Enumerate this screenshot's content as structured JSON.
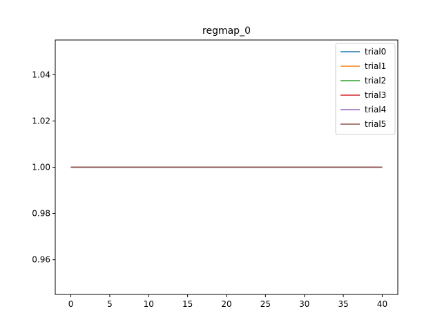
{
  "chart_data": {
    "type": "line",
    "title": "regmap_0",
    "xlabel": "",
    "ylabel": "",
    "xlim": [
      -2,
      42
    ],
    "ylim": [
      0.945,
      1.055
    ],
    "x_ticks": [
      0,
      5,
      10,
      15,
      20,
      25,
      30,
      35,
      40
    ],
    "x_tick_labels": [
      "0",
      "5",
      "10",
      "15",
      "20",
      "25",
      "30",
      "35",
      "40"
    ],
    "y_ticks": [
      0.96,
      0.98,
      1.0,
      1.02,
      1.04
    ],
    "y_tick_labels": [
      "0.96",
      "0.98",
      "1.00",
      "1.02",
      "1.04"
    ],
    "grid": false,
    "legend_position": "top-right",
    "x": [
      0,
      40
    ],
    "series": [
      {
        "name": "trial0",
        "color": "#1f77b4",
        "values": [
          1.0,
          1.0
        ]
      },
      {
        "name": "trial1",
        "color": "#ff7f0e",
        "values": [
          1.0,
          1.0
        ]
      },
      {
        "name": "trial2",
        "color": "#2ca02c",
        "values": [
          1.0,
          1.0
        ]
      },
      {
        "name": "trial3",
        "color": "#d62728",
        "values": [
          1.0,
          1.0
        ]
      },
      {
        "name": "trial4",
        "color": "#9467bd",
        "values": [
          1.0,
          1.0
        ]
      },
      {
        "name": "trial5",
        "color": "#8c564b",
        "values": [
          1.0,
          1.0
        ]
      }
    ]
  }
}
